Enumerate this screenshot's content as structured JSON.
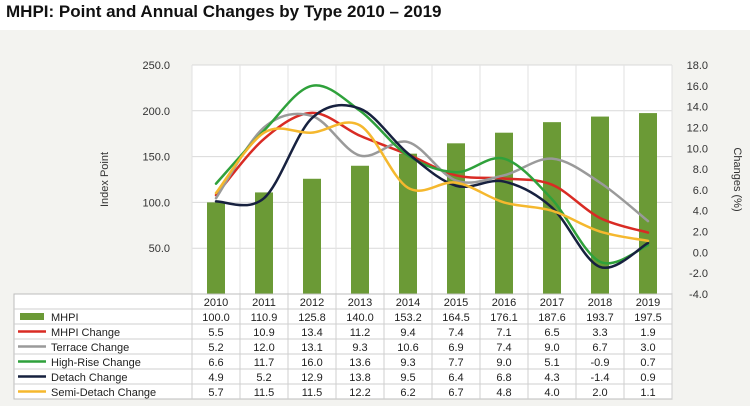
{
  "title": "MHPI: Point and Annual Changes by Type 2010 – 2019",
  "chart_data": {
    "type": "bar+line",
    "categories": [
      "2010",
      "2011",
      "2012",
      "2013",
      "2014",
      "2015",
      "2016",
      "2017",
      "2018",
      "2019"
    ],
    "ylabel": "Index Point",
    "y2label": "Changes (%)",
    "ylim": [
      0,
      250
    ],
    "y_ticks": [
      "-",
      "50.0",
      "100.0",
      "150.0",
      "200.0",
      "250.0"
    ],
    "y2lim": [
      -4,
      18
    ],
    "y2_ticks": [
      "-4.0",
      "-2.0",
      "0.0",
      "2.0",
      "4.0",
      "6.0",
      "8.0",
      "10.0",
      "12.0",
      "14.0",
      "16.0",
      "18.0"
    ],
    "grid": true,
    "legend": "table-below",
    "bar_series": {
      "name": "MHPI",
      "color": "#6b9a36",
      "values": [
        100.0,
        110.9,
        125.8,
        140.0,
        153.2,
        164.5,
        176.1,
        187.6,
        193.7,
        197.5
      ],
      "labels": [
        "100.0",
        "110.9",
        "125.8",
        "140.0",
        "153.2",
        "164.5",
        "176.1",
        "187.6",
        "193.7",
        "197.5"
      ]
    },
    "series": [
      {
        "name": "MHPI Change",
        "color": "#d92b24",
        "values": [
          5.5,
          10.9,
          13.4,
          11.2,
          9.4,
          7.4,
          7.1,
          6.5,
          3.3,
          1.9
        ],
        "labels": [
          "5.5",
          "10.9",
          "13.4",
          "11.2",
          "9.4",
          "7.4",
          "7.1",
          "6.5",
          "3.3",
          "1.9"
        ]
      },
      {
        "name": "Terrace Change",
        "color": "#9a9a9a",
        "values": [
          5.2,
          12.0,
          13.1,
          9.3,
          10.6,
          6.9,
          7.4,
          9.0,
          6.7,
          3.0
        ],
        "labels": [
          "5.2",
          "12.0",
          "13.1",
          "9.3",
          "10.6",
          "6.9",
          "7.4",
          "9.0",
          "6.7",
          "3.0"
        ]
      },
      {
        "name": "High-Rise Change",
        "color": "#2fa13b",
        "values": [
          6.6,
          11.7,
          16.0,
          13.6,
          9.3,
          7.7,
          9.0,
          5.1,
          -0.9,
          0.7
        ],
        "labels": [
          "6.6",
          "11.7",
          "16.0",
          "13.6",
          "9.3",
          "7.7",
          "9.0",
          "5.1",
          "-0.9",
          "0.7"
        ]
      },
      {
        "name": "Detach Change",
        "color": "#17213f",
        "values": [
          4.9,
          5.2,
          12.9,
          13.8,
          9.5,
          6.4,
          6.8,
          4.3,
          -1.4,
          0.9
        ],
        "labels": [
          "4.9",
          "5.2",
          "12.9",
          "13.8",
          "9.5",
          "6.4",
          "6.8",
          "4.3",
          "-1.4",
          "0.9"
        ]
      },
      {
        "name": "Semi-Detach Change",
        "color": "#f5b82e",
        "values": [
          5.7,
          11.5,
          11.5,
          12.2,
          6.2,
          6.7,
          4.8,
          4.0,
          2.0,
          1.1
        ],
        "labels": [
          "5.7",
          "11.5",
          "11.5",
          "12.2",
          "6.2",
          "6.7",
          "4.8",
          "4.0",
          "2.0",
          "1.1"
        ]
      }
    ]
  }
}
